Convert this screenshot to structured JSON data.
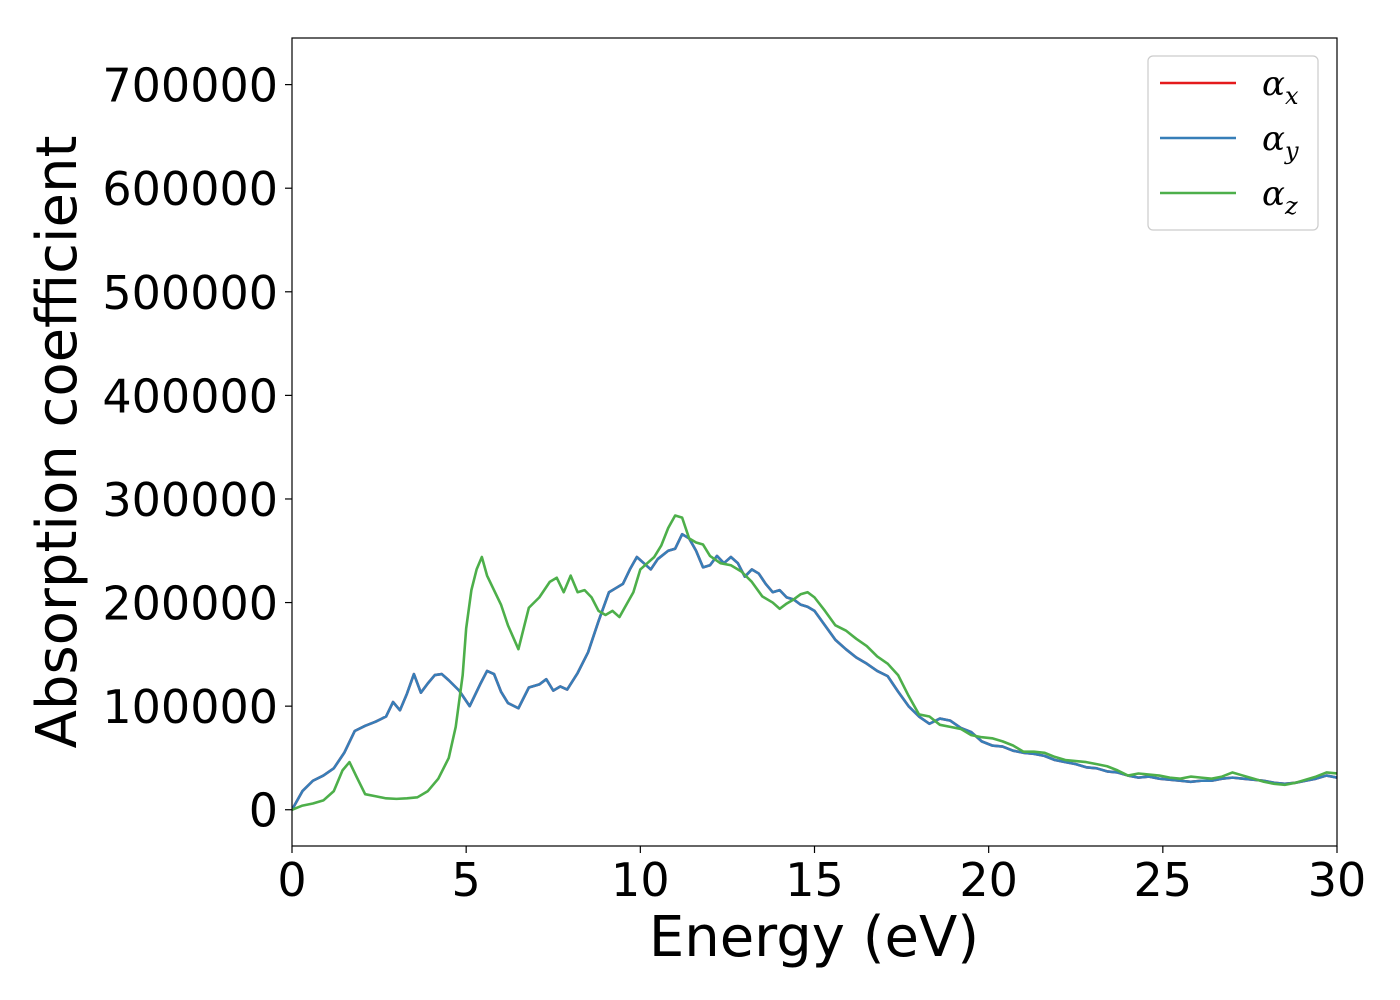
{
  "chart_data": {
    "type": "line",
    "xlabel": "Energy (eV)",
    "ylabel": "Absorption coefficient",
    "xlim": [
      0,
      30
    ],
    "ylim": [
      -35000,
      745000
    ],
    "xticks": [
      0,
      5,
      10,
      15,
      20,
      25,
      30
    ],
    "xtick_labels": [
      "0",
      "5",
      "10",
      "15",
      "20",
      "25",
      "30"
    ],
    "yticks": [
      0,
      100000,
      200000,
      300000,
      400000,
      500000,
      600000,
      700000
    ],
    "ytick_labels": [
      "0",
      "100000",
      "200000",
      "300000",
      "400000",
      "500000",
      "600000",
      "700000"
    ],
    "grid": false,
    "legend_position": "top-right",
    "series": [
      {
        "name": "α_x",
        "legend_symbol": "α",
        "legend_sub": "x",
        "color": "#e41a1c",
        "x": [
          0,
          0.3,
          0.6,
          0.9,
          1.2,
          1.5,
          1.8,
          2.1,
          2.4,
          2.7,
          2.9,
          3.1,
          3.3,
          3.5,
          3.7,
          3.9,
          4.1,
          4.3,
          4.5,
          4.8,
          5.1,
          5.4,
          5.6,
          5.8,
          6.0,
          6.2,
          6.5,
          6.8,
          7.1,
          7.3,
          7.5,
          7.7,
          7.9,
          8.2,
          8.5,
          8.8,
          9.1,
          9.3,
          9.5,
          9.7,
          9.9,
          10.1,
          10.3,
          10.5,
          10.8,
          11.0,
          11.2,
          11.4,
          11.6,
          11.8,
          12.0,
          12.2,
          12.4,
          12.6,
          12.8,
          13.0,
          13.2,
          13.4,
          13.6,
          13.8,
          14.0,
          14.2,
          14.4,
          14.6,
          14.8,
          15.0,
          15.3,
          15.6,
          15.9,
          16.2,
          16.5,
          16.8,
          17.1,
          17.4,
          17.7,
          18.0,
          18.3,
          18.6,
          18.9,
          19.2,
          19.5,
          19.8,
          20.1,
          20.4,
          20.7,
          21.0,
          21.3,
          21.6,
          21.9,
          22.2,
          22.5,
          22.8,
          23.1,
          23.4,
          23.7,
          24.0,
          24.3,
          24.6,
          24.9,
          25.2,
          25.5,
          25.8,
          26.1,
          26.4,
          26.7,
          27.0,
          27.3,
          27.6,
          27.9,
          28.2,
          28.5,
          28.8,
          29.1,
          29.4,
          29.7,
          30.0
        ],
        "values": [
          0,
          18000,
          28000,
          33000,
          40000,
          55000,
          76000,
          81000,
          85000,
          90000,
          104000,
          96000,
          112000,
          131000,
          113000,
          122000,
          130000,
          131000,
          125000,
          115000,
          100000,
          121000,
          134000,
          131000,
          114000,
          103000,
          98000,
          118000,
          121000,
          126000,
          115000,
          119000,
          116000,
          132000,
          152000,
          182000,
          210000,
          214000,
          218000,
          232000,
          244000,
          238000,
          232000,
          242000,
          250000,
          252000,
          266000,
          262000,
          250000,
          234000,
          236000,
          245000,
          238000,
          244000,
          238000,
          225000,
          232000,
          228000,
          218000,
          210000,
          212000,
          205000,
          203000,
          198000,
          196000,
          192000,
          178000,
          164000,
          155000,
          147000,
          141000,
          134000,
          129000,
          114000,
          100000,
          90000,
          83000,
          88000,
          86000,
          79000,
          75000,
          66000,
          62000,
          61000,
          57000,
          55000,
          54000,
          52000,
          48000,
          46000,
          44000,
          41000,
          40000,
          37000,
          36000,
          33000,
          31000,
          32000,
          30000,
          29000,
          28000,
          27000,
          28000,
          28000,
          30000,
          31000,
          30000,
          29000,
          28000,
          26000,
          25000,
          26000,
          28000,
          30000,
          33000,
          31000
        ]
      },
      {
        "name": "α_y",
        "legend_symbol": "α",
        "legend_sub": "y",
        "color": "#377eb8",
        "x": [
          0,
          0.3,
          0.6,
          0.9,
          1.2,
          1.5,
          1.8,
          2.1,
          2.4,
          2.7,
          2.9,
          3.1,
          3.3,
          3.5,
          3.7,
          3.9,
          4.1,
          4.3,
          4.5,
          4.8,
          5.1,
          5.4,
          5.6,
          5.8,
          6.0,
          6.2,
          6.5,
          6.8,
          7.1,
          7.3,
          7.5,
          7.7,
          7.9,
          8.2,
          8.5,
          8.8,
          9.1,
          9.3,
          9.5,
          9.7,
          9.9,
          10.1,
          10.3,
          10.5,
          10.8,
          11.0,
          11.2,
          11.4,
          11.6,
          11.8,
          12.0,
          12.2,
          12.4,
          12.6,
          12.8,
          13.0,
          13.2,
          13.4,
          13.6,
          13.8,
          14.0,
          14.2,
          14.4,
          14.6,
          14.8,
          15.0,
          15.3,
          15.6,
          15.9,
          16.2,
          16.5,
          16.8,
          17.1,
          17.4,
          17.7,
          18.0,
          18.3,
          18.6,
          18.9,
          19.2,
          19.5,
          19.8,
          20.1,
          20.4,
          20.7,
          21.0,
          21.3,
          21.6,
          21.9,
          22.2,
          22.5,
          22.8,
          23.1,
          23.4,
          23.7,
          24.0,
          24.3,
          24.6,
          24.9,
          25.2,
          25.5,
          25.8,
          26.1,
          26.4,
          26.7,
          27.0,
          27.3,
          27.6,
          27.9,
          28.2,
          28.5,
          28.8,
          29.1,
          29.4,
          29.7,
          30.0
        ],
        "values": [
          0,
          18000,
          28000,
          33000,
          40000,
          55000,
          76000,
          81000,
          85000,
          90000,
          104000,
          96000,
          112000,
          131000,
          113000,
          122000,
          130000,
          131000,
          125000,
          115000,
          100000,
          121000,
          134000,
          131000,
          114000,
          103000,
          98000,
          118000,
          121000,
          126000,
          115000,
          119000,
          116000,
          132000,
          152000,
          182000,
          210000,
          214000,
          218000,
          232000,
          244000,
          238000,
          232000,
          242000,
          250000,
          252000,
          266000,
          262000,
          250000,
          234000,
          236000,
          245000,
          238000,
          244000,
          238000,
          225000,
          232000,
          228000,
          218000,
          210000,
          212000,
          205000,
          203000,
          198000,
          196000,
          192000,
          178000,
          164000,
          155000,
          147000,
          141000,
          134000,
          129000,
          114000,
          100000,
          90000,
          83000,
          88000,
          86000,
          79000,
          75000,
          66000,
          62000,
          61000,
          57000,
          55000,
          54000,
          52000,
          48000,
          46000,
          44000,
          41000,
          40000,
          37000,
          36000,
          33000,
          31000,
          32000,
          30000,
          29000,
          28000,
          27000,
          28000,
          28000,
          30000,
          31000,
          30000,
          29000,
          28000,
          26000,
          25000,
          26000,
          28000,
          30000,
          33000,
          31000
        ]
      },
      {
        "name": "α_z",
        "legend_symbol": "α",
        "legend_sub": "z",
        "color": "#4daf4a",
        "x": [
          0,
          0.3,
          0.6,
          0.9,
          1.2,
          1.45,
          1.65,
          1.85,
          2.1,
          2.4,
          2.7,
          3.0,
          3.3,
          3.6,
          3.9,
          4.2,
          4.5,
          4.7,
          4.9,
          5.0,
          5.15,
          5.3,
          5.45,
          5.6,
          5.8,
          6.0,
          6.2,
          6.5,
          6.8,
          7.1,
          7.4,
          7.6,
          7.8,
          8.0,
          8.2,
          8.4,
          8.6,
          8.8,
          9.0,
          9.2,
          9.4,
          9.6,
          9.8,
          10.0,
          10.2,
          10.4,
          10.6,
          10.8,
          11.0,
          11.2,
          11.4,
          11.6,
          11.8,
          12.0,
          12.3,
          12.6,
          12.9,
          13.2,
          13.5,
          13.8,
          14.0,
          14.2,
          14.4,
          14.6,
          14.8,
          15.0,
          15.3,
          15.6,
          15.9,
          16.2,
          16.5,
          16.8,
          17.1,
          17.4,
          17.7,
          18.0,
          18.3,
          18.6,
          18.9,
          19.2,
          19.5,
          19.8,
          20.1,
          20.4,
          20.7,
          21.0,
          21.3,
          21.6,
          21.9,
          22.2,
          22.5,
          22.8,
          23.1,
          23.4,
          23.7,
          24.0,
          24.3,
          24.6,
          24.9,
          25.2,
          25.5,
          25.8,
          26.1,
          26.4,
          26.7,
          27.0,
          27.3,
          27.6,
          27.9,
          28.2,
          28.5,
          28.8,
          29.1,
          29.4,
          29.7,
          30.0
        ],
        "values": [
          0,
          4000,
          6000,
          9000,
          18000,
          38000,
          46000,
          32000,
          15000,
          13000,
          11000,
          10500,
          11000,
          12000,
          18000,
          30000,
          50000,
          80000,
          130000,
          175000,
          212000,
          232000,
          244000,
          226000,
          212000,
          198000,
          178000,
          155000,
          195000,
          205000,
          220000,
          224000,
          210000,
          226000,
          210000,
          212000,
          205000,
          192000,
          188000,
          192000,
          186000,
          198000,
          210000,
          232000,
          238000,
          244000,
          255000,
          272000,
          284000,
          282000,
          262000,
          258000,
          256000,
          245000,
          238000,
          236000,
          230000,
          220000,
          206000,
          200000,
          194000,
          199000,
          203000,
          208000,
          210000,
          205000,
          192000,
          178000,
          173000,
          165000,
          158000,
          148000,
          141000,
          130000,
          110000,
          92000,
          90000,
          82000,
          80000,
          78000,
          72000,
          70000,
          69000,
          66000,
          62000,
          56000,
          56000,
          55000,
          51000,
          48000,
          47000,
          46000,
          44000,
          42000,
          38000,
          33000,
          35000,
          34000,
          33000,
          31000,
          30000,
          32000,
          31000,
          30000,
          32000,
          36000,
          33000,
          30000,
          27000,
          25000,
          24000,
          26000,
          29000,
          32000,
          36000,
          35000
        ]
      }
    ]
  }
}
